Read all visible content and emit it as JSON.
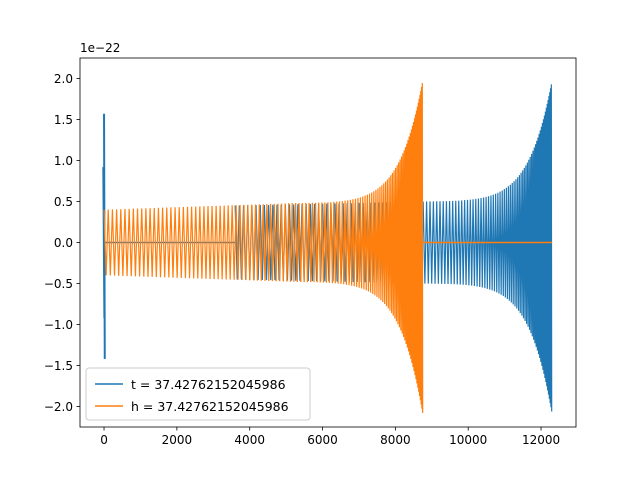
{
  "chart_data": {
    "type": "line",
    "title": "",
    "xlabel": "",
    "ylabel": "",
    "y_offset_label": "1e−22",
    "xlim": [
      -660,
      12960
    ],
    "ylim": [
      -2.25,
      2.25
    ],
    "xticks": [
      0,
      2000,
      4000,
      6000,
      8000,
      10000,
      12000
    ],
    "xtick_labels": [
      "0",
      "2000",
      "4000",
      "6000",
      "8000",
      "10000",
      "12000"
    ],
    "yticks": [
      2.0,
      1.5,
      1.0,
      0.5,
      0.0,
      -0.5,
      -1.0,
      -1.5,
      -2.0
    ],
    "ytick_labels": [
      "2.0",
      "1.5",
      "1.0",
      "0.5",
      "0.0",
      "−0.5",
      "−1.0",
      "−1.5",
      "−2.0"
    ],
    "grid": false,
    "legend_position": "lower-left",
    "series": [
      {
        "name": "t = 37.42762152045986",
        "color": "#1f77b4",
        "x_range": [
          0,
          12300
        ],
        "baseline_segment": [
          0,
          3600
        ],
        "start_spike": {
          "x": 0,
          "ymax": 1.57,
          "ymin": -1.42
        },
        "start_envelope": 0.92,
        "oscillation_x_range": [
          3600,
          12300
        ],
        "amp_start": 0.45,
        "amp_mid": 0.5,
        "amp_end": 1.97,
        "amp_end_min": -2.08
      },
      {
        "name": "h = 37.42762152045986",
        "color": "#ff7f0e",
        "x_range": [
          0,
          12300
        ],
        "oscillation_x_range": [
          0,
          8750
        ],
        "amp_start": 0.4,
        "amp_mid": 0.48,
        "amp_end": 1.97,
        "amp_end_min": -2.08,
        "baseline_segment": [
          8750,
          12300
        ]
      }
    ]
  }
}
